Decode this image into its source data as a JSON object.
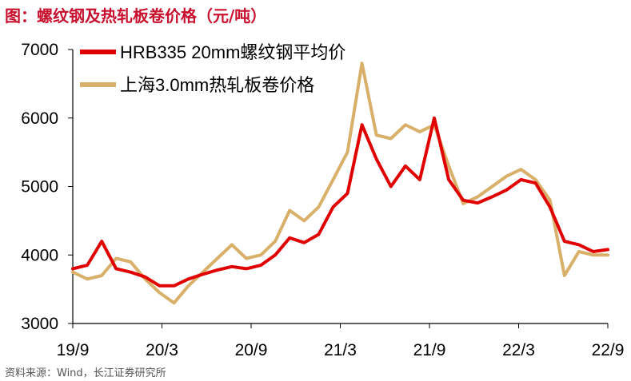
{
  "figure": {
    "title": "图：螺纹钢及热轧板卷价格（元/吨）",
    "source": "资料来源：Wind，长江证券研究所"
  },
  "colors": {
    "title": "#c8102e",
    "rebar": "#e00000",
    "hotroll": "#d9b06a",
    "axis": "#000000"
  },
  "chart_data": {
    "type": "line",
    "title": "螺纹钢及热轧板卷价格（元/吨）",
    "xlabel": "",
    "ylabel": "",
    "ylim": [
      3000,
      7000
    ],
    "yticks": [
      "3000",
      "4000",
      "5000",
      "6000",
      "7000"
    ],
    "xlim": [
      "2019-09",
      "2022-09"
    ],
    "xticks": [
      "19/9",
      "20/3",
      "20/9",
      "21/3",
      "21/9",
      "22/3",
      "22/9"
    ],
    "grid": false,
    "legend_position": "top-left",
    "x": [
      "2019-09",
      "2019-10",
      "2019-11",
      "2019-12",
      "2020-01",
      "2020-02",
      "2020-03",
      "2020-04",
      "2020-05",
      "2020-06",
      "2020-07",
      "2020-08",
      "2020-09",
      "2020-10",
      "2020-11",
      "2020-12",
      "2021-01",
      "2021-02",
      "2021-03",
      "2021-04",
      "2021-05a",
      "2021-05b",
      "2021-06",
      "2021-07",
      "2021-08",
      "2021-09",
      "2021-10",
      "2021-11",
      "2021-12",
      "2022-01",
      "2022-02",
      "2022-03",
      "2022-04",
      "2022-05",
      "2022-06",
      "2022-07",
      "2022-08",
      "2022-09"
    ],
    "series": [
      {
        "name": "HRB335 20mm螺纹钢平均价",
        "color": "#e00000",
        "values": [
          3800,
          3850,
          4200,
          3800,
          3750,
          3680,
          3550,
          3550,
          3650,
          3720,
          3780,
          3830,
          3800,
          3850,
          4000,
          4250,
          4180,
          4300,
          4700,
          4900,
          5900,
          5400,
          5000,
          5300,
          5100,
          6000,
          5100,
          4800,
          4760,
          4850,
          4950,
          5100,
          5050,
          4700,
          4200,
          4150,
          4050,
          4080
        ]
      },
      {
        "name": "上海3.0mm热轧板卷价格",
        "color": "#d9b06a",
        "values": [
          3750,
          3650,
          3700,
          3950,
          3900,
          3650,
          3450,
          3300,
          3550,
          3750,
          3950,
          4150,
          3950,
          4000,
          4200,
          4650,
          4500,
          4700,
          5100,
          5500,
          6800,
          5750,
          5700,
          5900,
          5800,
          5900,
          5300,
          4750,
          4850,
          5000,
          5150,
          5250,
          5100,
          4800,
          3700,
          4050,
          4000,
          4000
        ]
      }
    ]
  }
}
